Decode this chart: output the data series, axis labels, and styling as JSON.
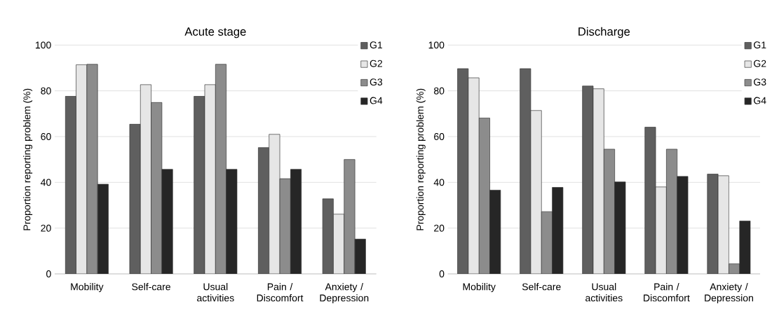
{
  "chart_data": [
    {
      "type": "bar",
      "title": "Acute stage",
      "ylabel": "Proportion reporting problem  (%)",
      "categories": [
        "Mobility",
        "Self-care",
        "Usual activities",
        "Pain / Discomfort",
        "Anxiety / Depression"
      ],
      "series": [
        {
          "name": "G1",
          "color": "#5f5f5f",
          "values": [
            77.6,
            65.4,
            77.6,
            55.2,
            32.8
          ]
        },
        {
          "name": "G2",
          "color": "#e6e6e6",
          "values": [
            91.4,
            82.7,
            82.7,
            61.0,
            26.1
          ]
        },
        {
          "name": "G3",
          "color": "#8c8c8c",
          "values": [
            91.6,
            74.9,
            91.6,
            41.6,
            50.0
          ]
        },
        {
          "name": "G4",
          "color": "#262626",
          "values": [
            39.2,
            45.7,
            45.7,
            45.7,
            15.2
          ]
        }
      ],
      "ylim": [
        0,
        100
      ],
      "yticks": [
        0,
        20,
        40,
        60,
        80,
        100
      ],
      "grid": "y",
      "legend": "top right"
    },
    {
      "type": "bar",
      "title": "Discharge",
      "ylabel": "Proportion reporting problem  (%)",
      "categories": [
        "Mobility",
        "Self-care",
        "Usual activities",
        "Pain / Discomfort",
        "Anxiety / Depression"
      ],
      "series": [
        {
          "name": "G1",
          "color": "#5f5f5f",
          "values": [
            89.7,
            89.7,
            82.1,
            64.1,
            43.6
          ]
        },
        {
          "name": "G2",
          "color": "#e6e6e6",
          "values": [
            85.7,
            71.4,
            80.9,
            38.0,
            42.9
          ]
        },
        {
          "name": "G3",
          "color": "#8c8c8c",
          "values": [
            68.1,
            27.2,
            54.5,
            54.5,
            4.4
          ]
        },
        {
          "name": "G4",
          "color": "#262626",
          "values": [
            36.6,
            37.8,
            40.2,
            42.6,
            23.1
          ]
        }
      ],
      "ylim": [
        0,
        100
      ],
      "yticks": [
        0,
        20,
        40,
        60,
        80,
        100
      ],
      "grid": "y",
      "legend": "top right"
    }
  ]
}
